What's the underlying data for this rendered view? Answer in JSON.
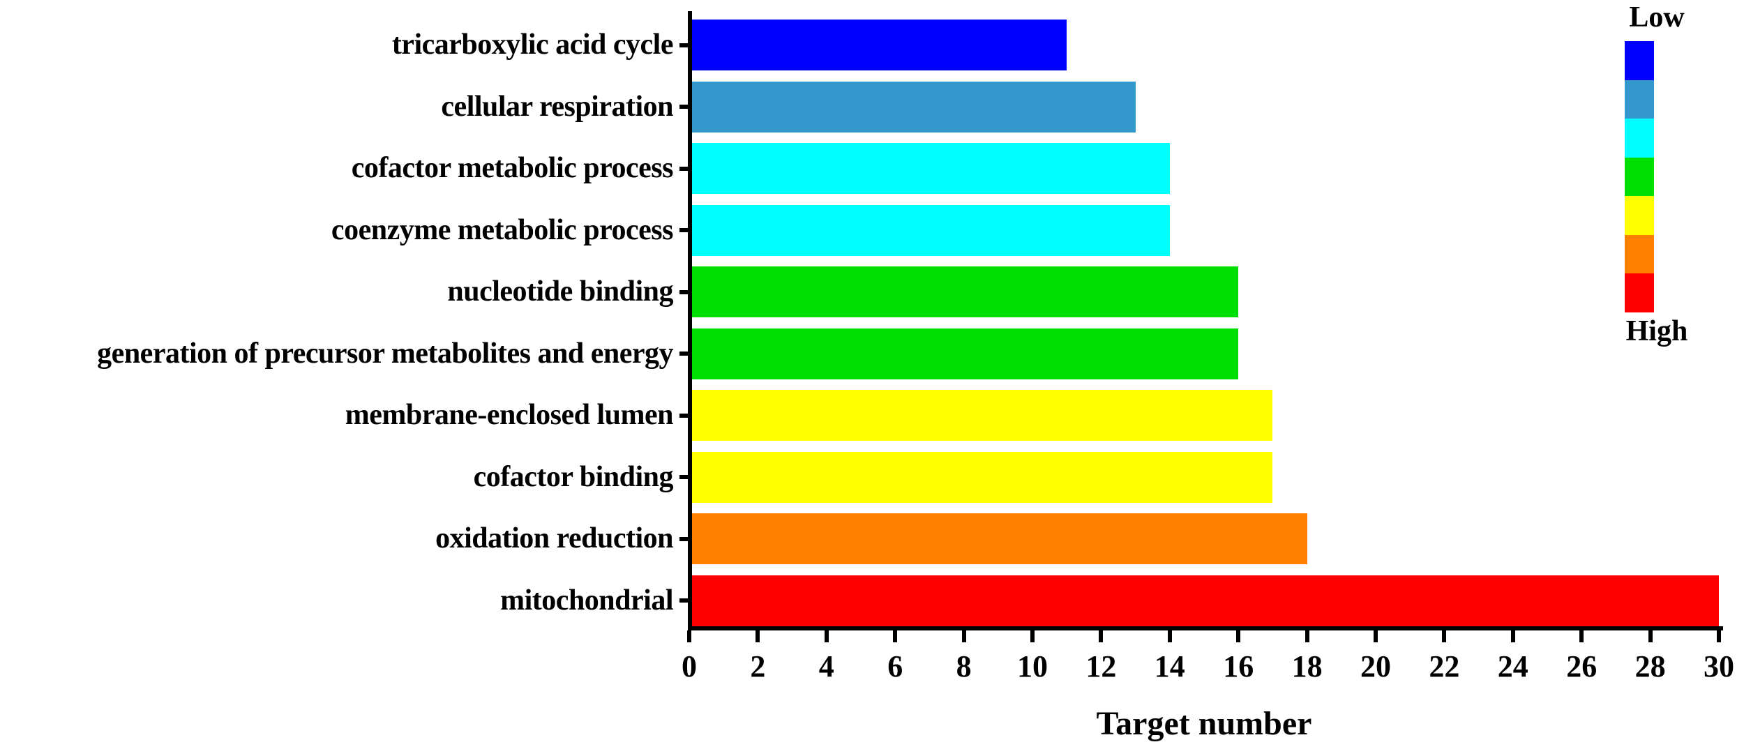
{
  "chart_data": {
    "type": "bar",
    "orientation": "horizontal",
    "title": "",
    "xlabel": "Target number",
    "ylabel": "",
    "categories": [
      "tricarboxylic acid cycle",
      "cellular respiration",
      "cofactor metabolic process",
      "coenzyme metabolic process",
      "nucleotide binding",
      "generation of precursor metabolites and energy",
      "membrane-enclosed lumen",
      "cofactor binding",
      "oxidation reduction",
      "mitochondrial"
    ],
    "values": [
      11,
      13,
      14,
      14,
      16,
      16,
      17,
      17,
      18,
      30
    ],
    "bar_colors": [
      "#0000FE",
      "#3399CC",
      "#00FFFF",
      "#00FFFF",
      "#00E000",
      "#00E000",
      "#FFFF00",
      "#FFFF00",
      "#FF8000",
      "#FE0000"
    ],
    "xlim": [
      0,
      30
    ],
    "xticks": [
      0,
      2,
      4,
      6,
      8,
      10,
      12,
      14,
      16,
      18,
      20,
      22,
      24,
      26,
      28,
      30
    ],
    "grid": false,
    "legend": {
      "position": "right",
      "low_label": "Low",
      "high_label": "High",
      "colors": [
        "#0000FE",
        "#3399CC",
        "#00FFFF",
        "#00E000",
        "#FFFF00",
        "#FF8000",
        "#FE0000"
      ]
    },
    "axis_color": "#000000",
    "text_color": "#000000"
  }
}
